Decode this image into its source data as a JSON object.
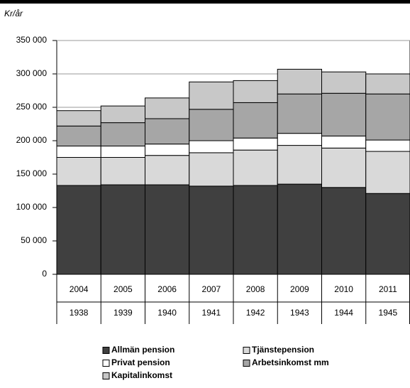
{
  "chart_data": {
    "type": "stacked_bar",
    "y_label": "Kr/år",
    "categories": [
      "2004",
      "2005",
      "2006",
      "2007",
      "2008",
      "2009",
      "2010",
      "2011"
    ],
    "categories2": [
      "1938",
      "1939",
      "1940",
      "1941",
      "1942",
      "1943",
      "1944",
      "1945"
    ],
    "series": [
      {
        "name": "Allmän pension",
        "color": "#404040",
        "values": [
          133000,
          134000,
          134000,
          132000,
          133000,
          135000,
          130000,
          121000
        ]
      },
      {
        "name": "Tjänstepension",
        "color": "#d9d9d9",
        "values": [
          42000,
          41000,
          44000,
          50000,
          53000,
          58000,
          59000,
          63000
        ]
      },
      {
        "name": "Privat pension",
        "color": "#ffffff",
        "values": [
          17000,
          17000,
          17000,
          18000,
          18000,
          18000,
          18000,
          17000
        ]
      },
      {
        "name": "Arbetsinkomst mm",
        "color": "#a6a6a6",
        "values": [
          30000,
          35000,
          38000,
          47000,
          53000,
          59000,
          64000,
          69000
        ]
      },
      {
        "name": "Kapitalinkomst",
        "color": "#c8c8c8",
        "values": [
          23000,
          25000,
          31000,
          41000,
          33000,
          37000,
          32000,
          30000
        ]
      }
    ],
    "ylim": [
      0,
      350000
    ],
    "yticks": [
      0,
      {
        "value": 50000,
        "label": "50 000"
      },
      {
        "value": 100000,
        "label": "100 000"
      },
      {
        "value": 150000,
        "label": "150 000"
      },
      {
        "value": 200000,
        "label": "200 000"
      },
      {
        "value": 250000,
        "label": "250 000"
      },
      {
        "value": 300000,
        "label": "300 000"
      },
      {
        "value": 350000,
        "label": "350 000"
      }
    ],
    "grid": true
  }
}
